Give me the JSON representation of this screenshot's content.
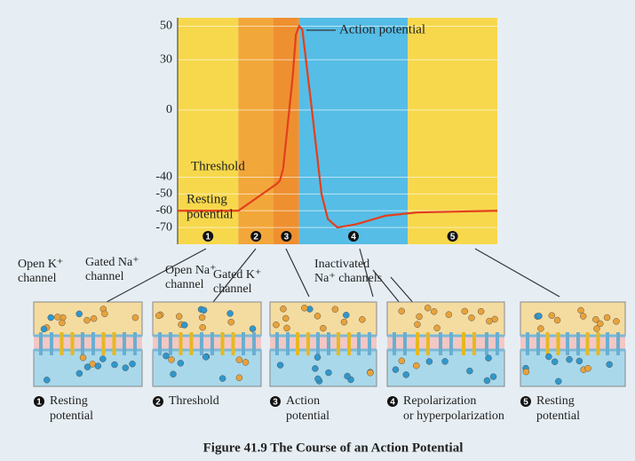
{
  "chart_data": {
    "type": "line",
    "ylim": [
      -80,
      55
    ],
    "yticks": [
      50,
      30,
      0,
      -40,
      -50,
      -60,
      -70
    ],
    "xlim": [
      0,
      100
    ],
    "grid": true,
    "phases": [
      {
        "label": "1",
        "start": 0,
        "end": 19,
        "color": "#f7d84c"
      },
      {
        "label": "2",
        "start": 19,
        "end": 30,
        "color": "#f2a73a"
      },
      {
        "label": "3",
        "start": 30,
        "end": 38,
        "color": "#ee9030"
      },
      {
        "label": "4",
        "start": 38,
        "end": 72,
        "color": "#56bde6"
      },
      {
        "label": "5",
        "start": 72,
        "end": 100,
        "color": "#f7d84c"
      }
    ],
    "series": [
      {
        "color": "#e2401c",
        "x": [
          0,
          19,
          25,
          31,
          32,
          33,
          36,
          37,
          38,
          39,
          42,
          45,
          47,
          50,
          56,
          65,
          75,
          100
        ],
        "values": [
          -60,
          -60,
          -52,
          -44,
          -42,
          -35,
          20,
          45,
          50,
          48,
          0,
          -50,
          -65,
          -70,
          -68,
          -63,
          -61,
          -60
        ]
      }
    ],
    "annotations": [
      "Action potential",
      "Threshold",
      "Resting",
      "potential"
    ]
  },
  "labels": [
    {
      "lines": [
        "Open K⁺",
        "channel"
      ]
    },
    {
      "lines": [
        "Gated Na⁺",
        "channel"
      ]
    },
    {
      "lines": [
        "Open Na⁺",
        "channel"
      ]
    },
    {
      "lines": [
        "Gated K⁺",
        "channel"
      ]
    },
    {
      "lines": [
        "Inactivated",
        "Na⁺ channels"
      ]
    }
  ],
  "panels": [
    {
      "number": "1",
      "caption": [
        "Resting",
        "potential"
      ]
    },
    {
      "number": "2",
      "caption": [
        "Threshold"
      ]
    },
    {
      "number": "3",
      "caption": [
        "Action",
        "potential"
      ]
    },
    {
      "number": "4",
      "caption": [
        "Repolarization",
        "or hyperpolarization"
      ]
    },
    {
      "number": "5",
      "caption": [
        "Resting",
        "potential"
      ]
    }
  ],
  "caption": "Figure 41.9 The Course of an Action Potential"
}
